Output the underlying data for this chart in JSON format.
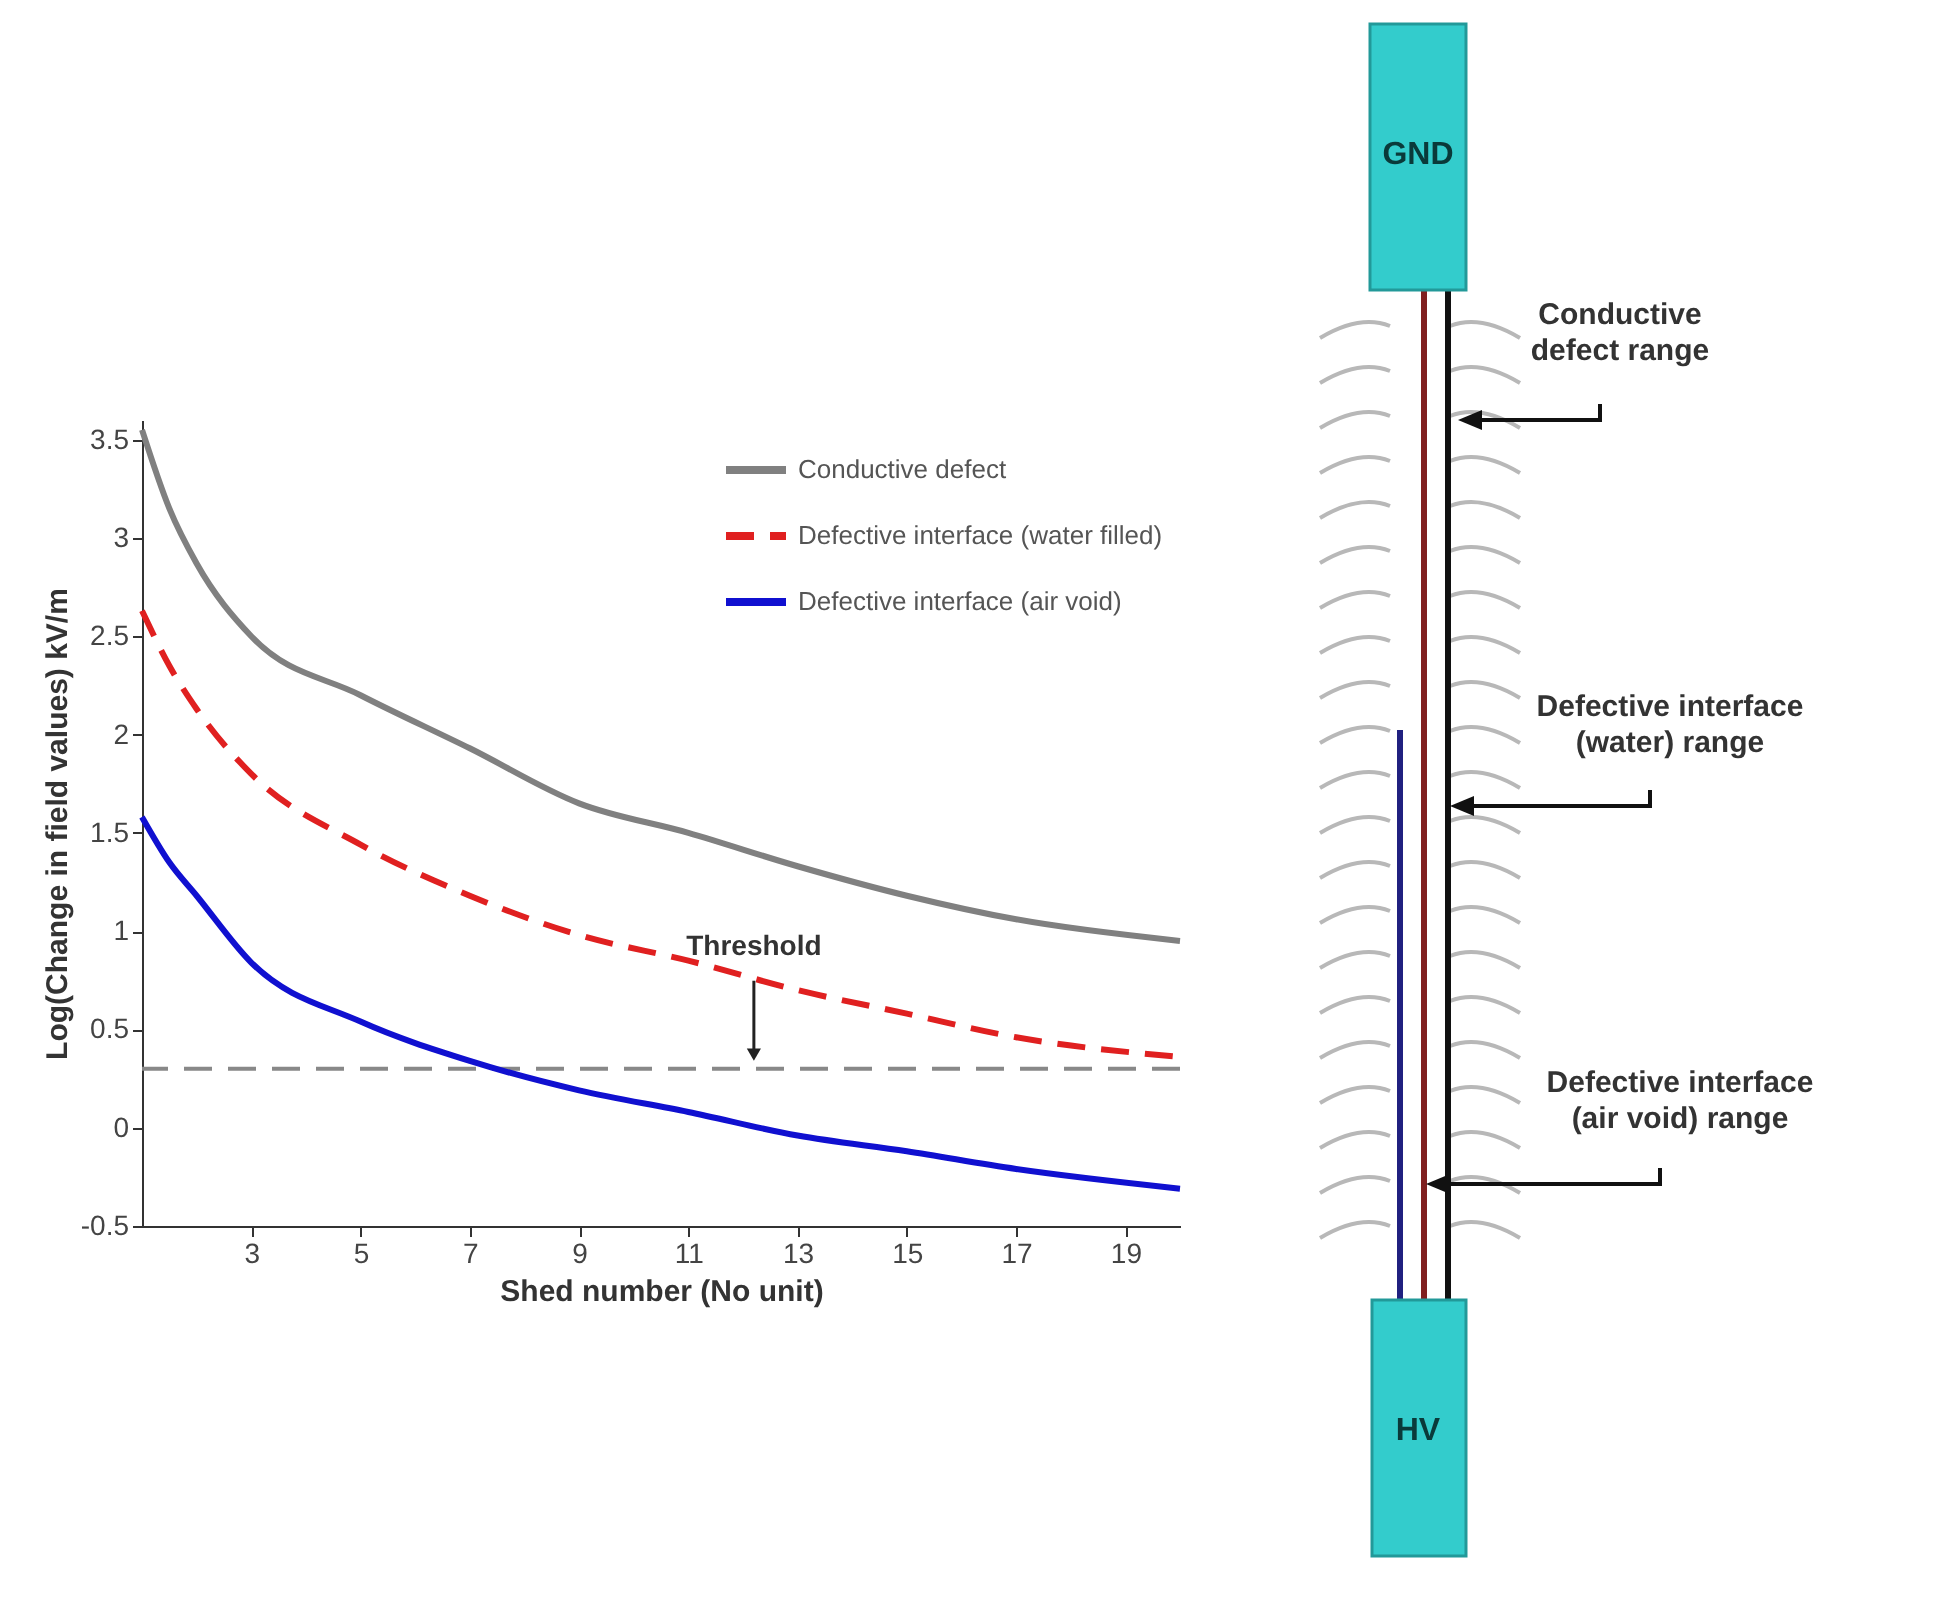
{
  "chart_data": {
    "type": "line",
    "xlabel": "Shed number (No unit)",
    "ylabel": "Log(Change in field values) kV/m",
    "xlim": [
      1,
      20
    ],
    "xticks": [
      3,
      5,
      7,
      9,
      11,
      13,
      15,
      17,
      19
    ],
    "ylim": [
      -0.5,
      3.6
    ],
    "yticks": [
      -0.5,
      0,
      0.5,
      1,
      1.5,
      2,
      2.5,
      3,
      3.5
    ],
    "x": [
      1,
      1.5,
      2,
      3,
      5,
      7,
      9,
      11,
      13,
      15,
      17,
      20
    ],
    "series": [
      {
        "name": "Conductive defect",
        "color": "#808080",
        "values": [
          3.55,
          3.15,
          2.87,
          2.5,
          2.2,
          1.93,
          1.65,
          1.5,
          1.33,
          1.18,
          1.06,
          0.95
        ]
      },
      {
        "name": "Defective interface (water filled)",
        "color": "#e02020",
        "line_style": "dashed",
        "values": [
          2.63,
          2.35,
          2.13,
          1.8,
          1.44,
          1.18,
          0.98,
          0.85,
          0.7,
          0.58,
          0.46,
          0.36
        ]
      },
      {
        "name": "Defective interface (air void)",
        "color": "#1010d0",
        "values": [
          1.58,
          1.35,
          1.18,
          0.84,
          0.54,
          0.34,
          0.19,
          0.08,
          -0.04,
          -0.12,
          -0.21,
          -0.31
        ]
      }
    ],
    "ref_lines": [
      {
        "axis": "y",
        "value": 0.3,
        "color": "#888888",
        "line_style": "dashed"
      }
    ],
    "annotations": [
      {
        "text": "Threshold",
        "x": 12.2,
        "y": 0.3
      },
      "GND",
      "HV",
      "Conductive defect range",
      "Defective interface (water) range",
      "Defective interface (air void) range"
    ],
    "legend": "top right",
    "grid": false
  }
}
